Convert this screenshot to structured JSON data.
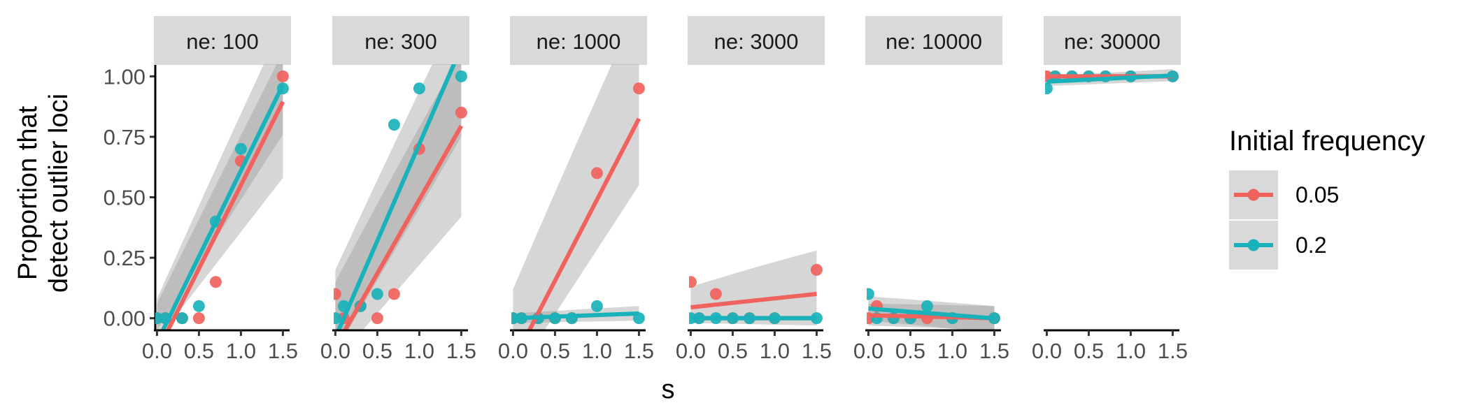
{
  "chart_data": {
    "type": "scatter",
    "facet_label": "ne",
    "xlabel": "s",
    "ylabel": [
      "Proportion that",
      "detect outlier loci"
    ],
    "xlim": [
      -0.02,
      1.58
    ],
    "ylim": [
      -0.05,
      1.05
    ],
    "x_ticks": [
      "0.0",
      "0.5",
      "1.0",
      "1.5"
    ],
    "y_ticks": [
      "0.00",
      "0.25",
      "0.50",
      "0.75",
      "1.00"
    ],
    "grid": false,
    "legend": {
      "title": "Initial frequency",
      "position": "right"
    },
    "series": [
      {
        "name": "0.05",
        "color": "#F0625E"
      },
      {
        "name": "0.2",
        "color": "#19B2BA"
      }
    ],
    "panels": [
      {
        "strip": "ne: 100",
        "points": [
          [
            [
              0,
              0
            ],
            [
              0.1,
              0
            ],
            [
              0.3,
              0
            ],
            [
              0.5,
              0
            ],
            [
              0.7,
              0.15
            ],
            [
              1.0,
              0.65
            ],
            [
              1.5,
              1.0
            ]
          ],
          [
            [
              0,
              0
            ],
            [
              0.1,
              0
            ],
            [
              0.3,
              0
            ],
            [
              0.5,
              0.05
            ],
            [
              0.7,
              0.4
            ],
            [
              1.0,
              0.7
            ],
            [
              1.5,
              0.95
            ]
          ]
        ],
        "fits": [
          {
            "intercept": -0.14,
            "slope": 0.69,
            "band_low": [
              -0.09,
              0.58
            ],
            "band_high": [
              0.08,
              1.22
            ]
          },
          {
            "intercept": -0.1,
            "slope": 0.71,
            "band_low": [
              -0.05,
              0.76
            ],
            "band_high": [
              0.06,
              1.1
            ]
          }
        ]
      },
      {
        "strip": "ne: 300",
        "points": [
          [
            [
              0,
              0.1
            ],
            [
              0.1,
              0
            ],
            [
              0.3,
              0.05
            ],
            [
              0.5,
              0
            ],
            [
              0.7,
              0.1
            ],
            [
              1.0,
              0.7
            ],
            [
              1.5,
              0.85
            ]
          ],
          [
            [
              0,
              0
            ],
            [
              0.1,
              0.05
            ],
            [
              0.3,
              0.05
            ],
            [
              0.5,
              0.1
            ],
            [
              0.7,
              0.8
            ],
            [
              1.0,
              0.95
            ],
            [
              1.5,
              1.0
            ]
          ]
        ],
        "fits": [
          {
            "intercept": -0.12,
            "slope": 0.61,
            "band_low": [
              -0.18,
              0.42
            ],
            "band_high": [
              0.15,
              1.1
            ]
          },
          {
            "intercept": -0.08,
            "slope": 0.8,
            "band_low": [
              -0.14,
              0.75
            ],
            "band_high": [
              0.2,
              1.3
            ]
          }
        ]
      },
      {
        "strip": "ne: 1000",
        "points": [
          [
            [
              0,
              0
            ],
            [
              0.1,
              0
            ],
            [
              0.3,
              0
            ],
            [
              0.5,
              0
            ],
            [
              0.7,
              0
            ],
            [
              1.0,
              0.6
            ],
            [
              1.5,
              0.95
            ]
          ],
          [
            [
              0,
              0
            ],
            [
              0.1,
              0
            ],
            [
              0.3,
              0
            ],
            [
              0.5,
              0
            ],
            [
              0.7,
              0
            ],
            [
              1.0,
              0.05
            ],
            [
              1.5,
              0
            ]
          ]
        ],
        "fits": [
          {
            "intercept": -0.18,
            "slope": 0.67,
            "band_low": [
              -0.25,
              0.55
            ],
            "band_high": [
              0.12,
              1.3
            ]
          },
          {
            "intercept": 0.0,
            "slope": 0.013,
            "band_low": [
              -0.02,
              -0.01
            ],
            "band_high": [
              0.02,
              0.05
            ]
          }
        ]
      },
      {
        "strip": "ne: 3000",
        "points": [
          [
            [
              0,
              0.15
            ],
            [
              0.1,
              0
            ],
            [
              0.3,
              0.1
            ],
            [
              0.5,
              0
            ],
            [
              0.7,
              0
            ],
            [
              1.0,
              0
            ],
            [
              1.5,
              0.2
            ]
          ],
          [
            [
              0,
              0
            ],
            [
              0.1,
              0
            ],
            [
              0.3,
              0
            ],
            [
              0.5,
              0
            ],
            [
              0.7,
              0
            ],
            [
              1.0,
              0
            ],
            [
              1.5,
              0
            ]
          ]
        ],
        "fits": [
          {
            "intercept": 0.045,
            "slope": 0.037,
            "band_low": [
              -0.02,
              -0.03
            ],
            "band_high": [
              0.13,
              0.28
            ]
          },
          {
            "intercept": 0.0,
            "slope": 0.0,
            "band_low": [
              -0.01,
              -0.01
            ],
            "band_high": [
              0.01,
              0.01
            ]
          }
        ]
      },
      {
        "strip": "ne: 10000",
        "points": [
          [
            [
              0,
              0
            ],
            [
              0.1,
              0.05
            ],
            [
              0.3,
              0
            ],
            [
              0.5,
              0
            ],
            [
              0.7,
              0
            ],
            [
              1.0,
              0
            ],
            [
              1.5,
              0
            ]
          ],
          [
            [
              0,
              0.1
            ],
            [
              0.1,
              0
            ],
            [
              0.3,
              0
            ],
            [
              0.5,
              0
            ],
            [
              0.7,
              0.05
            ],
            [
              1.0,
              0
            ],
            [
              1.5,
              0
            ]
          ]
        ],
        "fits": [
          {
            "intercept": 0.012,
            "slope": -0.008,
            "band_low": [
              -0.03,
              -0.05
            ],
            "band_high": [
              0.06,
              0.05
            ]
          },
          {
            "intercept": 0.04,
            "slope": -0.027,
            "band_low": [
              -0.01,
              -0.06
            ],
            "band_high": [
              0.09,
              0.05
            ]
          }
        ]
      },
      {
        "strip": "ne: 30000",
        "points": [
          [
            [
              0,
              1.0
            ],
            [
              0.1,
              1.0
            ],
            [
              0.3,
              1.0
            ],
            [
              0.5,
              1.0
            ],
            [
              0.7,
              1.0
            ],
            [
              1.0,
              1.0
            ],
            [
              1.5,
              1.0
            ]
          ],
          [
            [
              0,
              0.95
            ],
            [
              0.1,
              1.0
            ],
            [
              0.3,
              1.0
            ],
            [
              0.5,
              1.0
            ],
            [
              0.7,
              1.0
            ],
            [
              1.0,
              1.0
            ],
            [
              1.5,
              1.0
            ]
          ]
        ],
        "fits": [
          {
            "intercept": 1.0,
            "slope": 0.0,
            "band_low": [
              0.99,
              0.99
            ],
            "band_high": [
              1.01,
              1.01
            ]
          },
          {
            "intercept": 0.978,
            "slope": 0.017,
            "band_low": [
              0.96,
              0.98
            ],
            "band_high": [
              1.0,
              1.03
            ]
          }
        ]
      }
    ]
  }
}
